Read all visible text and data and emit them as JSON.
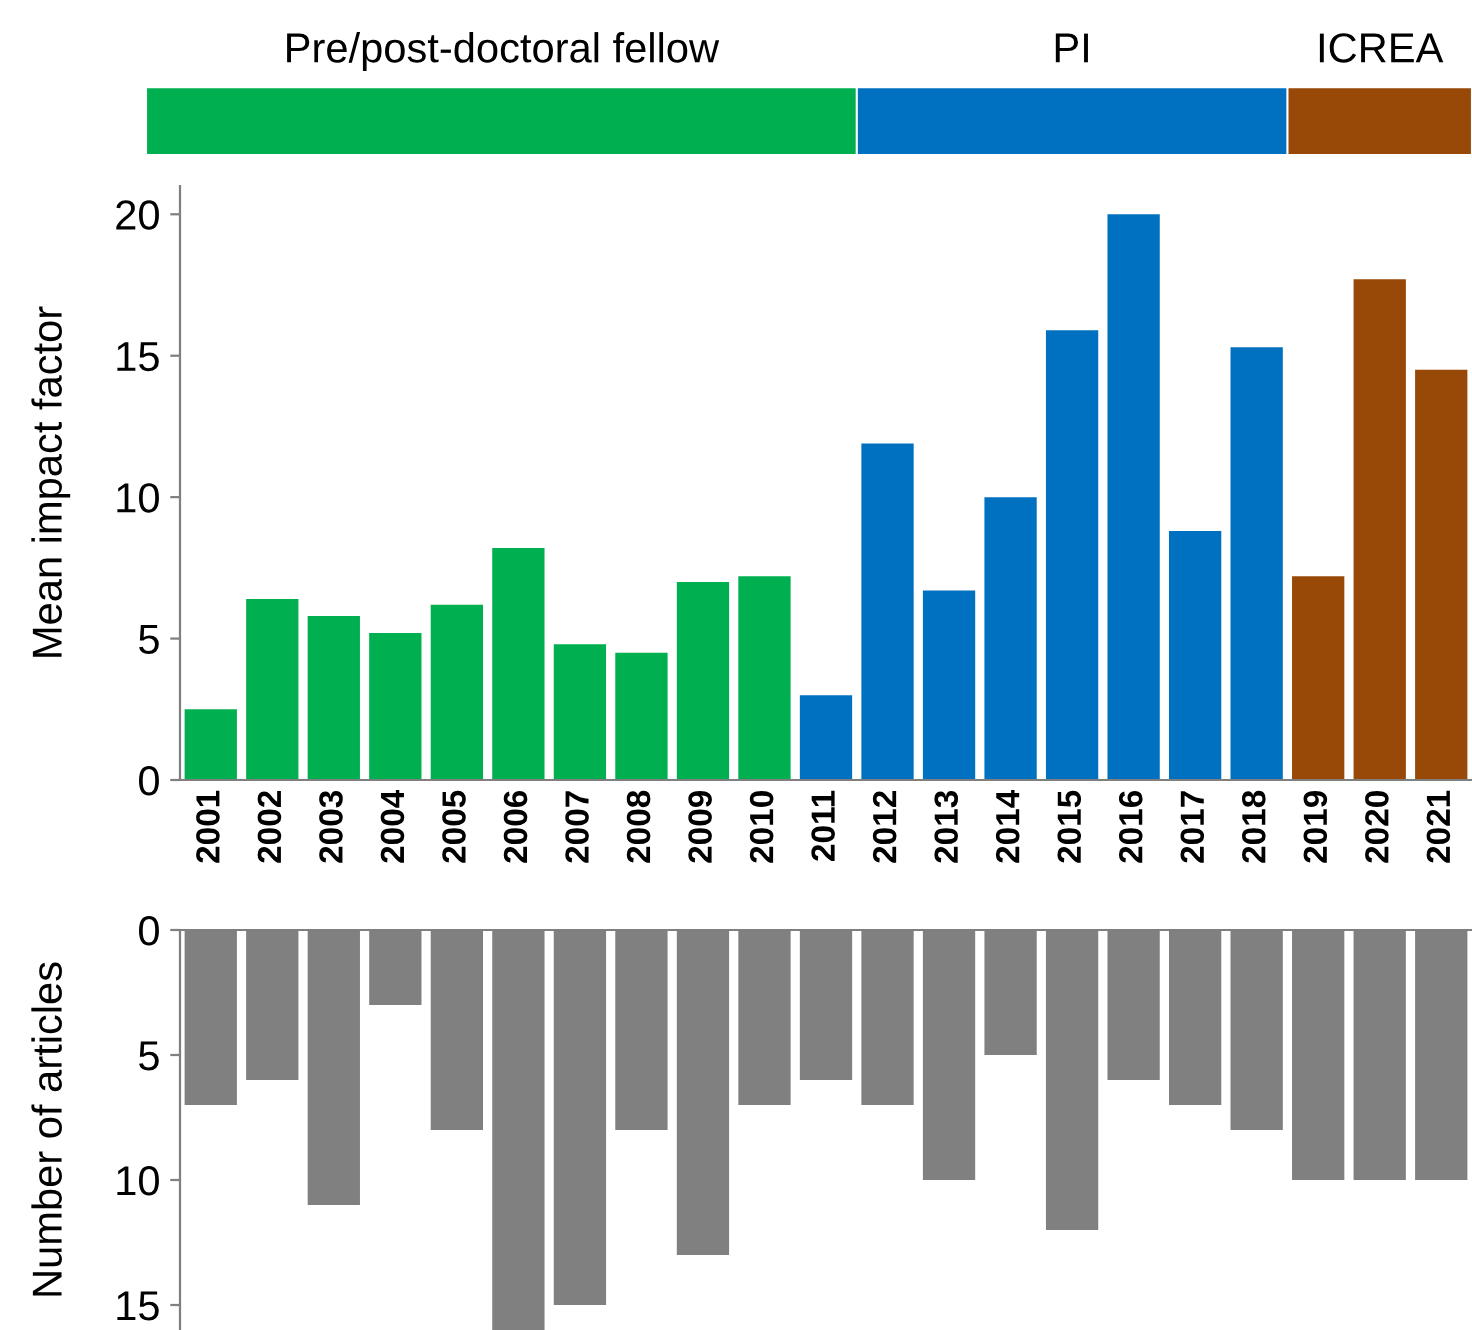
{
  "chart_data": [
    {
      "type": "bar",
      "ylabel": "Mean impact factor",
      "categories": [
        "2001",
        "2002",
        "2003",
        "2004",
        "2005",
        "2006",
        "2007",
        "2008",
        "2009",
        "2010",
        "2011",
        "2012",
        "2013",
        "2014",
        "2015",
        "2016",
        "2017",
        "2018",
        "2019",
        "2020",
        "2021"
      ],
      "values": [
        2.5,
        6.4,
        5.8,
        5.2,
        6.2,
        8.2,
        4.8,
        4.5,
        7.0,
        7.2,
        3.0,
        11.9,
        6.7,
        10.0,
        15.9,
        20.0,
        8.8,
        15.3,
        7.2,
        17.7,
        14.5
      ],
      "colors": [
        "#00b050",
        "#00b050",
        "#00b050",
        "#00b050",
        "#00b050",
        "#00b050",
        "#00b050",
        "#00b050",
        "#00b050",
        "#00b050",
        "#0070c0",
        "#0070c0",
        "#0070c0",
        "#0070c0",
        "#0070c0",
        "#0070c0",
        "#0070c0",
        "#0070c0",
        "#984807",
        "#984807",
        "#984807"
      ],
      "ylim": [
        0,
        21
      ],
      "yticks": [
        0,
        5,
        10,
        15,
        20
      ],
      "grid": false,
      "legend": false,
      "annotations": [
        "Pre/post-doctoral fellow",
        "PI",
        "ICREA"
      ]
    },
    {
      "type": "bar",
      "ylabel": "Number of articles",
      "categories": [
        "2001",
        "2002",
        "2003",
        "2004",
        "2005",
        "2006",
        "2007",
        "2008",
        "2009",
        "2010",
        "2011",
        "2012",
        "2013",
        "2014",
        "2015",
        "2016",
        "2017",
        "2018",
        "2019",
        "2020",
        "2021"
      ],
      "values": [
        7,
        6,
        11,
        3,
        8,
        16,
        15,
        8,
        13,
        7,
        6,
        7,
        10,
        5,
        12,
        6,
        7,
        8,
        10,
        10,
        10
      ],
      "color": "#808080",
      "ylim": [
        16,
        0
      ],
      "yticks": [
        0,
        5,
        10,
        15
      ],
      "grid": false,
      "legend": false,
      "tick_labels": "y"
    }
  ]
}
